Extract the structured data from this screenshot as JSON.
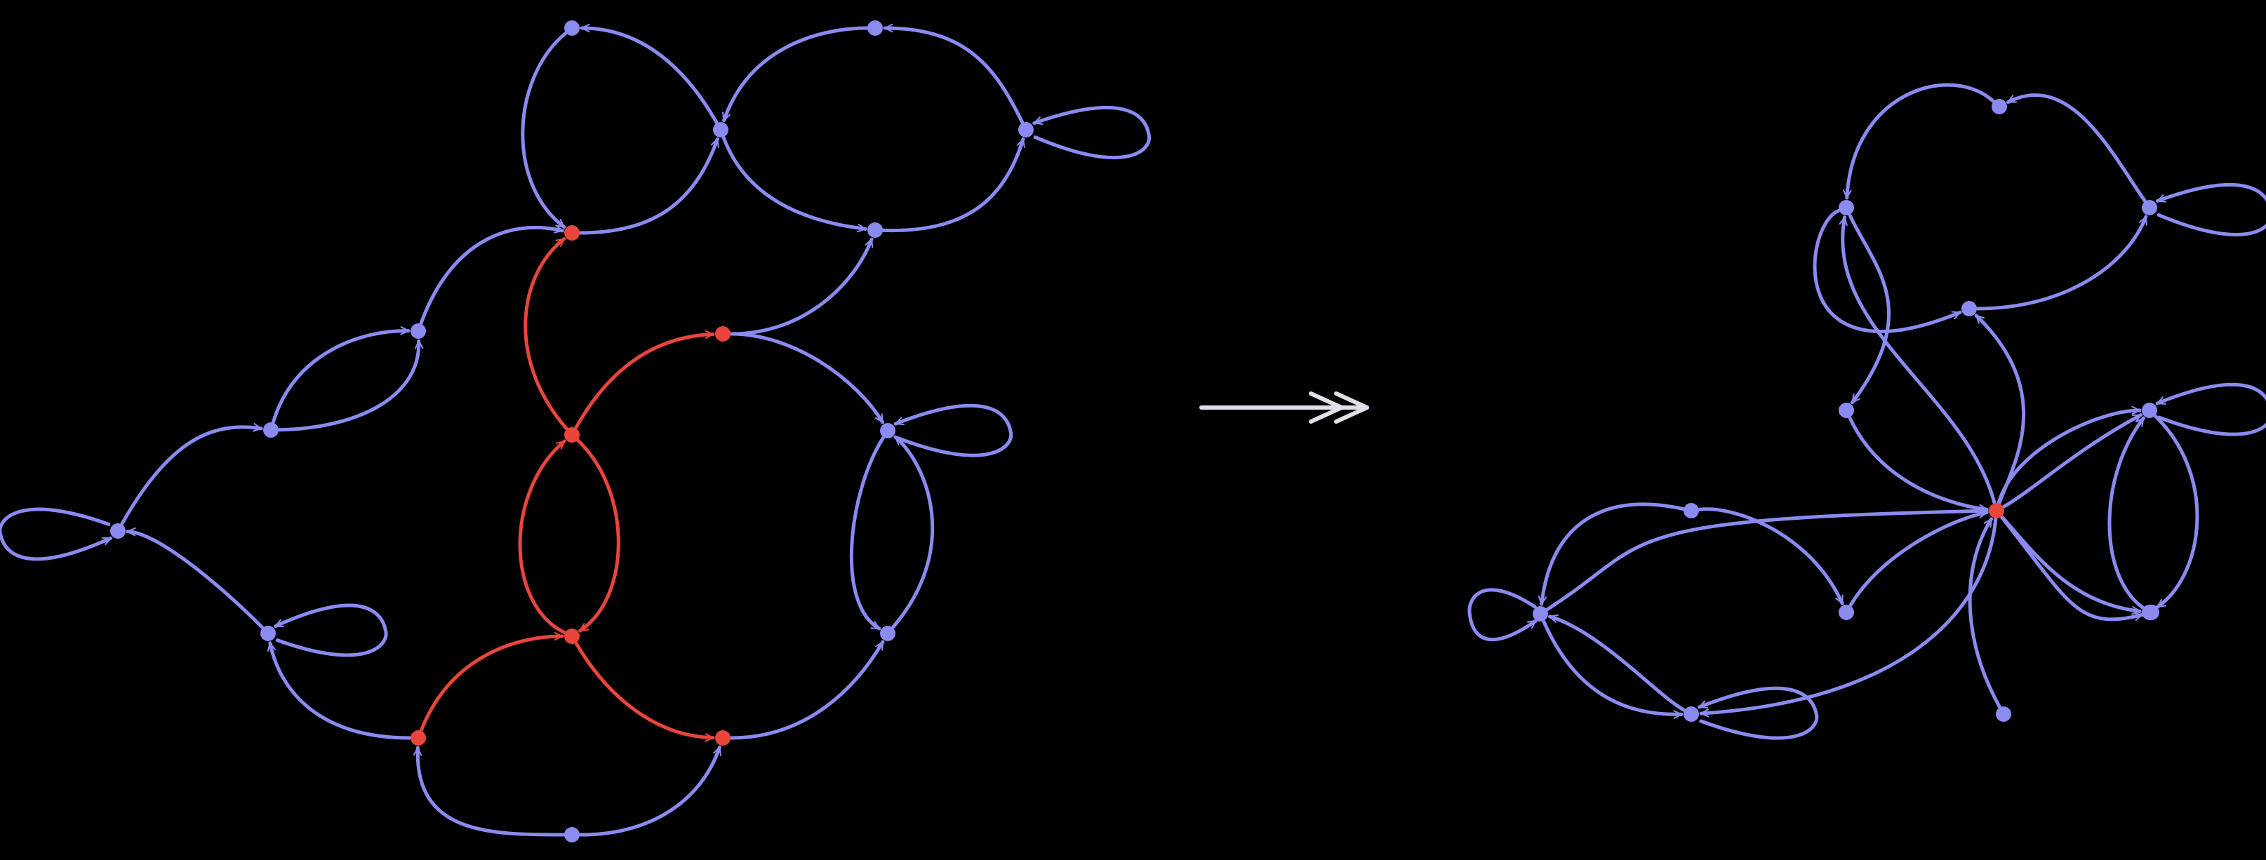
{
  "colors": {
    "background": "#000000",
    "edge": "#8a8af0",
    "node": "#8a8af0",
    "highlight": "#e8453c",
    "transition_arrow": "#e0e0e8"
  },
  "left_graph": {
    "nodes": [
      {
        "id": "a",
        "highlight": false
      },
      {
        "id": "b",
        "highlight": false
      },
      {
        "id": "c",
        "highlight": false
      },
      {
        "id": "d",
        "highlight": true
      },
      {
        "id": "e",
        "highlight": false
      },
      {
        "id": "f",
        "highlight": false
      },
      {
        "id": "g",
        "highlight": false
      },
      {
        "id": "h",
        "highlight": false
      },
      {
        "id": "i",
        "highlight": true
      },
      {
        "id": "j",
        "highlight": true
      },
      {
        "id": "k",
        "highlight": false
      },
      {
        "id": "l",
        "highlight": false
      },
      {
        "id": "m",
        "highlight": false
      },
      {
        "id": "n",
        "highlight": true
      },
      {
        "id": "o",
        "highlight": false
      },
      {
        "id": "p",
        "highlight": true
      },
      {
        "id": "q",
        "highlight": true
      },
      {
        "id": "r",
        "highlight": false
      }
    ],
    "edges": [
      {
        "from": "a",
        "to": "d",
        "highlight": false
      },
      {
        "from": "b",
        "to": "a",
        "highlight": false
      },
      {
        "from": "d",
        "to": "b",
        "highlight": false
      },
      {
        "from": "c",
        "to": "b",
        "highlight": false
      },
      {
        "from": "e",
        "to": "c",
        "highlight": false
      },
      {
        "from": "e",
        "to": "e",
        "highlight": false
      },
      {
        "from": "b",
        "to": "f",
        "highlight": false
      },
      {
        "from": "f",
        "to": "e",
        "highlight": false
      },
      {
        "from": "g",
        "to": "d",
        "highlight": false
      },
      {
        "from": "h",
        "to": "g",
        "highlight": false
      },
      {
        "from": "h",
        "to": "g",
        "highlight": false
      },
      {
        "from": "k",
        "to": "h",
        "highlight": false
      },
      {
        "from": "k",
        "to": "k",
        "highlight": false
      },
      {
        "from": "l",
        "to": "k",
        "highlight": false
      },
      {
        "from": "l",
        "to": "l",
        "highlight": false
      },
      {
        "from": "p",
        "to": "l",
        "highlight": false
      },
      {
        "from": "r",
        "to": "p",
        "highlight": false
      },
      {
        "from": "r",
        "to": "q",
        "highlight": false
      },
      {
        "from": "i",
        "to": "d",
        "highlight": true
      },
      {
        "from": "i",
        "to": "j",
        "highlight": true
      },
      {
        "from": "n",
        "to": "i",
        "highlight": true
      },
      {
        "from": "i",
        "to": "n",
        "highlight": true
      },
      {
        "from": "p",
        "to": "n",
        "highlight": true
      },
      {
        "from": "n",
        "to": "q",
        "highlight": true
      },
      {
        "from": "j",
        "to": "f",
        "highlight": false
      },
      {
        "from": "j",
        "to": "m",
        "highlight": false
      },
      {
        "from": "m",
        "to": "o",
        "highlight": false
      },
      {
        "from": "o",
        "to": "m",
        "highlight": false
      },
      {
        "from": "m",
        "to": "m",
        "highlight": false
      },
      {
        "from": "q",
        "to": "o",
        "highlight": false
      }
    ]
  },
  "right_graph": {
    "nodes": [
      {
        "id": "A",
        "highlight": false
      },
      {
        "id": "B",
        "highlight": false
      },
      {
        "id": "C",
        "highlight": false
      },
      {
        "id": "D",
        "highlight": false
      },
      {
        "id": "E",
        "highlight": false
      },
      {
        "id": "F",
        "highlight": false
      },
      {
        "id": "G",
        "highlight": false
      },
      {
        "id": "H",
        "highlight": false
      },
      {
        "id": "X",
        "highlight": true
      },
      {
        "id": "I",
        "highlight": false
      },
      {
        "id": "J",
        "highlight": false
      },
      {
        "id": "K",
        "highlight": false
      },
      {
        "id": "L",
        "highlight": false
      },
      {
        "id": "M",
        "highlight": false
      }
    ],
    "edges": [
      {
        "from": "A",
        "to": "B",
        "highlight": false
      },
      {
        "from": "C",
        "to": "A",
        "highlight": false
      },
      {
        "from": "C",
        "to": "C",
        "highlight": false
      },
      {
        "from": "B",
        "to": "D",
        "highlight": false
      },
      {
        "from": "D",
        "to": "C",
        "highlight": false
      },
      {
        "from": "B",
        "to": "E",
        "highlight": false
      },
      {
        "from": "X",
        "to": "B",
        "highlight": false
      },
      {
        "from": "X",
        "to": "D",
        "highlight": false
      },
      {
        "from": "E",
        "to": "X",
        "highlight": false
      },
      {
        "from": "X",
        "to": "F",
        "highlight": false
      },
      {
        "from": "F",
        "to": "F",
        "highlight": false
      },
      {
        "from": "X",
        "to": "F",
        "highlight": false
      },
      {
        "from": "F",
        "to": "H",
        "highlight": false
      },
      {
        "from": "H",
        "to": "F",
        "highlight": false
      },
      {
        "from": "X",
        "to": "H",
        "highlight": false
      },
      {
        "from": "M",
        "to": "X",
        "highlight": false
      },
      {
        "from": "G",
        "to": "X",
        "highlight": false
      },
      {
        "from": "G",
        "to": "G",
        "highlight": false
      },
      {
        "from": "I",
        "to": "G",
        "highlight": false
      },
      {
        "from": "I",
        "to": "J",
        "highlight": false
      },
      {
        "from": "J",
        "to": "X",
        "highlight": false
      },
      {
        "from": "G",
        "to": "K",
        "highlight": false
      },
      {
        "from": "K",
        "to": "G",
        "highlight": false
      },
      {
        "from": "K",
        "to": "K",
        "highlight": false
      },
      {
        "from": "X",
        "to": "K",
        "highlight": false
      },
      {
        "from": "X",
        "to": "L",
        "highlight": false
      }
    ]
  }
}
